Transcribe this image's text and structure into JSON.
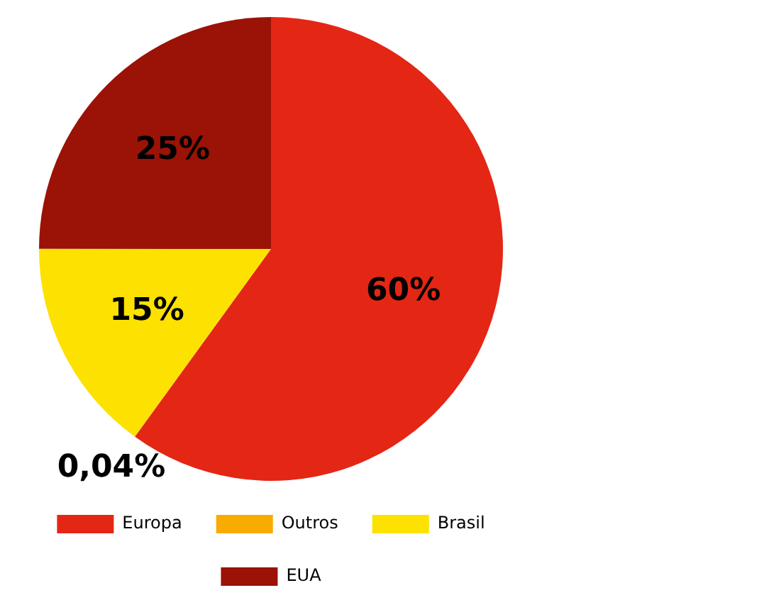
{
  "chart_data": {
    "type": "pie",
    "categories": [
      "Europa",
      "Outros",
      "Brasil",
      "EUA"
    ],
    "values": [
      60,
      0.04,
      15,
      25
    ],
    "colors": [
      "#e42615",
      "#f8ab00",
      "#fde100",
      "#9b1206"
    ],
    "value_labels": [
      "60%",
      "0,04%",
      "15%",
      "25%"
    ],
    "legend": "bottom"
  }
}
